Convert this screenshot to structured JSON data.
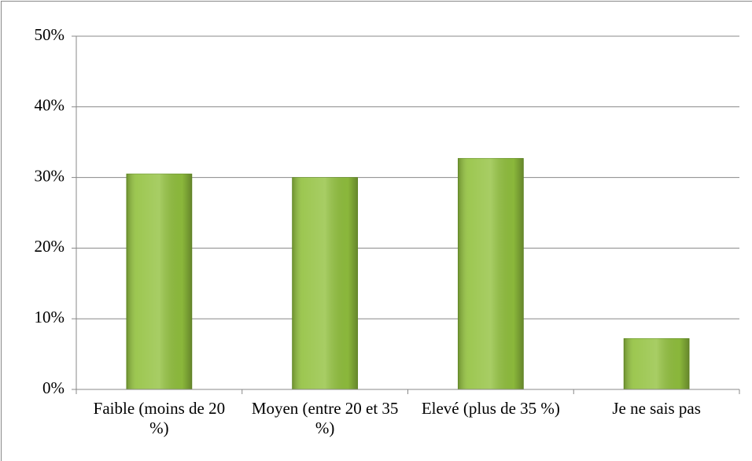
{
  "chart_data": {
    "type": "bar",
    "categories": [
      "Faible (moins de 20 %)",
      "Moyen (entre 20 et 35 %)",
      "Elevé (plus de 35 %)",
      "Je ne sais pas"
    ],
    "values": [
      30.5,
      30,
      32.7,
      7.2
    ],
    "color": "#92c13e",
    "ylim": [
      0,
      50
    ],
    "yticks": [
      {
        "value": 0,
        "label": "0%"
      },
      {
        "value": 10,
        "label": "10%"
      },
      {
        "value": 20,
        "label": "20%"
      },
      {
        "value": 30,
        "label": "30%"
      },
      {
        "value": 40,
        "label": "40%"
      },
      {
        "value": 50,
        "label": "50%"
      }
    ],
    "grid": true
  }
}
